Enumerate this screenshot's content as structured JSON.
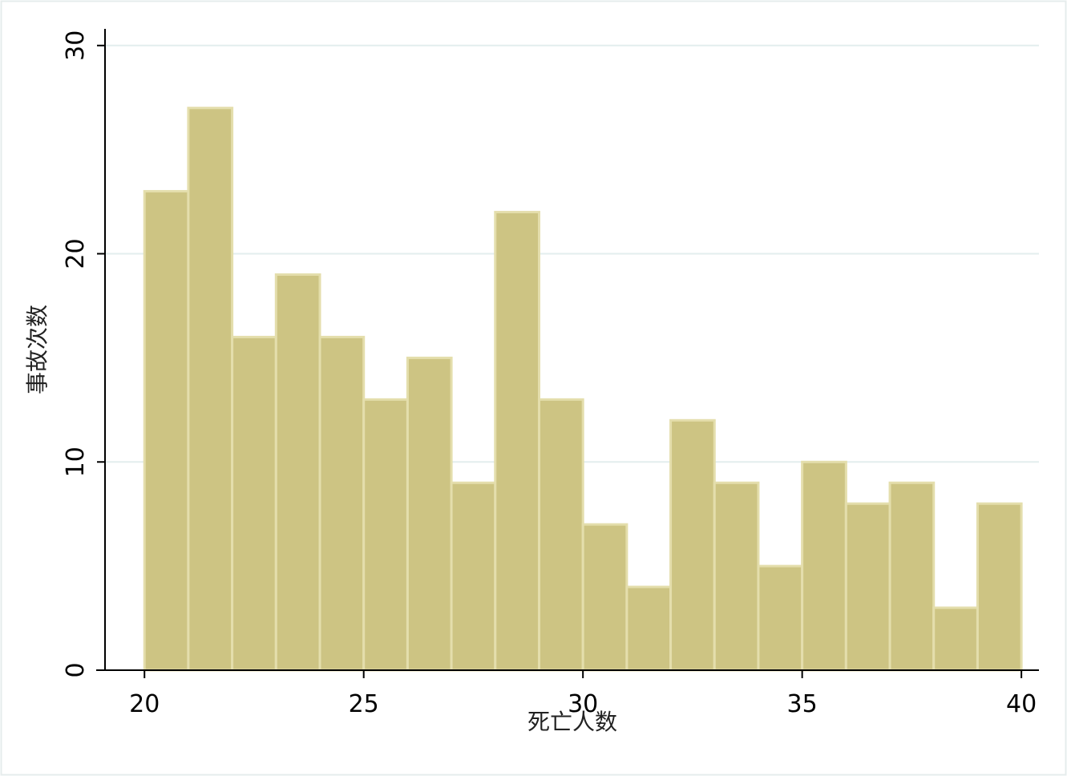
{
  "chart_data": {
    "type": "histogram",
    "x_label": "死亡人数",
    "y_label": "事故次数",
    "bins": [
      20,
      21,
      22,
      23,
      24,
      25,
      26,
      27,
      28,
      29,
      30,
      31,
      32,
      33,
      34,
      35,
      36,
      37,
      38,
      39,
      40
    ],
    "values": [
      23,
      27,
      16,
      19,
      16,
      13,
      15,
      9,
      22,
      13,
      7,
      4,
      12,
      9,
      5,
      10,
      8,
      9,
      3,
      8
    ],
    "color": "#cdc483",
    "xlim": [
      19.1,
      40.4
    ],
    "ylim": [
      0,
      30.8
    ],
    "xticks": [
      20,
      25,
      30,
      35,
      40
    ],
    "yticks": [
      0,
      10,
      20,
      30
    ],
    "grid": true
  }
}
